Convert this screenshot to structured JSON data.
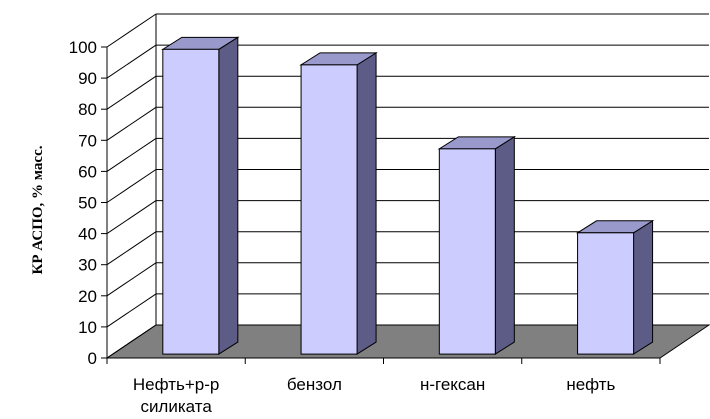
{
  "chart_data": {
    "type": "bar",
    "style": "3d-column",
    "title": "",
    "xlabel": "",
    "ylabel": "КР АСПО, % масс.",
    "ylim": [
      0,
      100
    ],
    "ytick_step": 10,
    "y_ticks": [
      "0",
      "10",
      "20",
      "30",
      "40",
      "50",
      "60",
      "70",
      "80",
      "90",
      "100"
    ],
    "categories": [
      [
        "Нефть+р-р",
        "силиката"
      ],
      [
        "бензол"
      ],
      [
        "н-гексан"
      ],
      [
        "нефть"
      ]
    ],
    "values": [
      98,
      93,
      66,
      39
    ],
    "grid": true,
    "legend": "none",
    "colors": {
      "bar_front": "#ccccff",
      "bar_side": "#5c5c86",
      "bar_top": "#9999cc",
      "floor": "#808080",
      "grid": "#000000"
    }
  }
}
